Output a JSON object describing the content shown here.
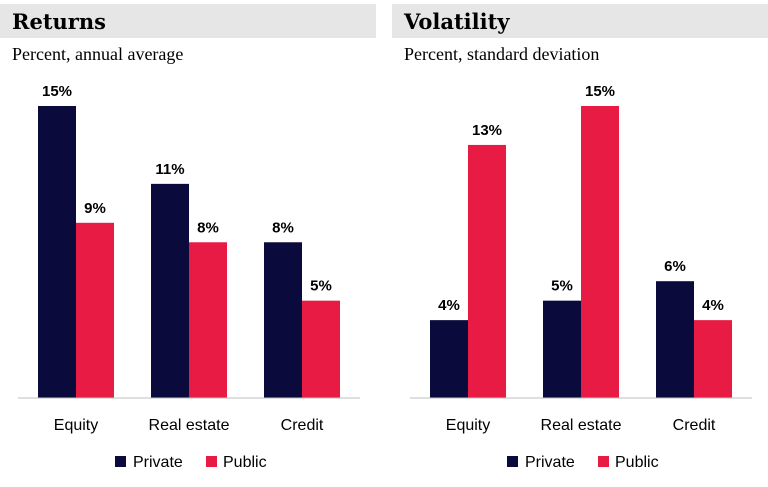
{
  "colors": {
    "private": "#0a0a3c",
    "public": "#e81b45",
    "header_bg": "#e6e6e6",
    "baseline": "#bfbfbf"
  },
  "chart_data": [
    {
      "type": "bar",
      "title": "Returns",
      "subtitle": "Percent, annual average",
      "categories": [
        "Equity",
        "Real estate",
        "Credit"
      ],
      "series": [
        {
          "name": "Private",
          "values": [
            15,
            11,
            8
          ],
          "labels": [
            "15%",
            "11%",
            "8%"
          ]
        },
        {
          "name": "Public",
          "values": [
            9,
            8,
            5
          ],
          "labels": [
            "9%",
            "8%",
            "5%"
          ]
        }
      ],
      "ylim": [
        0,
        15
      ],
      "legend": "bottom-center",
      "grid": false
    },
    {
      "type": "bar",
      "title": "Volatility",
      "subtitle": "Percent, standard deviation",
      "categories": [
        "Equity",
        "Real estate",
        "Credit"
      ],
      "series": [
        {
          "name": "Private",
          "values": [
            4,
            5,
            6
          ],
          "labels": [
            "4%",
            "5%",
            "6%"
          ]
        },
        {
          "name": "Public",
          "values": [
            13,
            15,
            4
          ],
          "labels": [
            "13%",
            "15%",
            "4%"
          ]
        }
      ],
      "ylim": [
        0,
        15
      ],
      "legend": "bottom-center",
      "grid": false
    }
  ]
}
